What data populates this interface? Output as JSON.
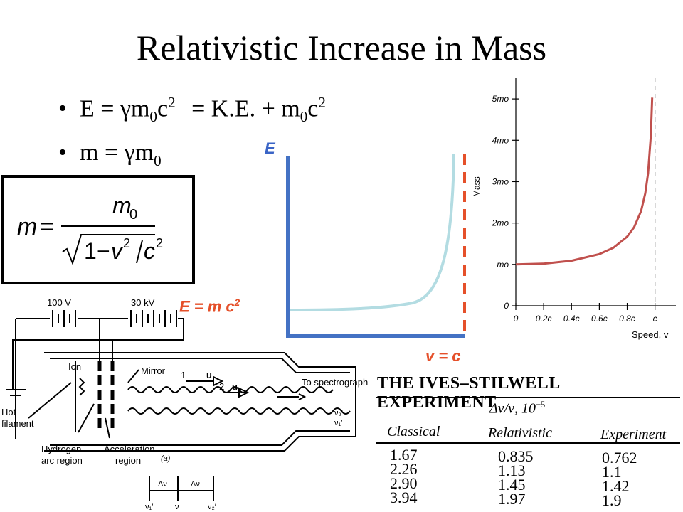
{
  "title": "Relativistic Increase in Mass",
  "bullets": [
    {
      "lhs": "E = γm",
      "sub1": "0",
      "mid": "c",
      "sup1": "2",
      "rest": "= K.E. + m",
      "sub2": "0",
      "end": "c",
      "sup2": "2"
    },
    {
      "lhs": "m = γm",
      "sub1": "0"
    }
  ],
  "formula": {
    "lhs": "m",
    "numerator": "m",
    "numerator_sub": "0",
    "denominator_one": "1",
    "v": "v",
    "c": "c",
    "exp": "2"
  },
  "energy_graph": {
    "y_label": "E",
    "curve_label": "E = m c",
    "curve_label_sup": "2",
    "asymptote_label": "v = c"
  },
  "mass_chart": {
    "y_axis_title": "Mass",
    "x_axis_title": "Speed, v",
    "y_ticks": [
      "0",
      "mo",
      "2mo",
      "3mo",
      "4mo",
      "5mo"
    ],
    "x_ticks": [
      "0",
      "0.2c",
      "0.4c",
      "0.6c",
      "0.8c",
      "c"
    ]
  },
  "chart_data": {
    "type": "line",
    "title": "",
    "xlabel": "Speed, v",
    "ylabel": "Mass",
    "x_tick_labels": [
      "0",
      "0.2c",
      "0.4c",
      "0.6c",
      "0.8c",
      "c"
    ],
    "y_tick_labels": [
      "0",
      "mo",
      "2mo",
      "3mo",
      "4mo",
      "5mo"
    ],
    "xlim": [
      0,
      1.15
    ],
    "ylim": [
      0,
      5.5
    ],
    "x_units": "fraction of c",
    "y_units": "multiples of m0",
    "x": [
      0,
      0.2,
      0.4,
      0.6,
      0.7,
      0.8,
      0.85,
      0.9,
      0.93,
      0.95,
      0.97,
      0.98
    ],
    "y": [
      1.0,
      1.02,
      1.09,
      1.25,
      1.4,
      1.67,
      1.9,
      2.29,
      2.72,
      3.2,
      4.11,
      5.03
    ],
    "asymptote_x": 1.0,
    "color": "#c0504d",
    "grid": false
  },
  "apparatus": {
    "voltage1": "100 V",
    "voltage2": "30 kV",
    "ion": "Ion",
    "mirror": "Mirror",
    "to_spectrograph": "To spectrograph",
    "hot_filament_1": "Hot",
    "hot_filament_2": "filament",
    "hydrogen_1": "Hydrogen",
    "hydrogen_2": "arc region",
    "accel_1": "Acceleration",
    "accel_2": "region",
    "fig_label": "(a)",
    "u": "u",
    "one": "1",
    "two": "2",
    "dnu1": "Δν",
    "dnu2": "Δν",
    "nu1p": "ν₁′",
    "nu": "ν",
    "nu2p": "ν₂′"
  },
  "ives_table": {
    "title": "THE IVES–STILWELL EXPERIMENT",
    "group_header": "Δν/ν, 10",
    "group_header_exp": "−5",
    "columns": [
      "Classical",
      "Relativistic",
      "Experiment"
    ],
    "rows": [
      [
        "1.67",
        "0.835",
        "0.762"
      ],
      [
        "2.26",
        "1.13",
        "1.1"
      ],
      [
        "2.90",
        "1.45",
        "1.42"
      ],
      [
        "3.94",
        "1.97",
        "1.9"
      ]
    ]
  }
}
